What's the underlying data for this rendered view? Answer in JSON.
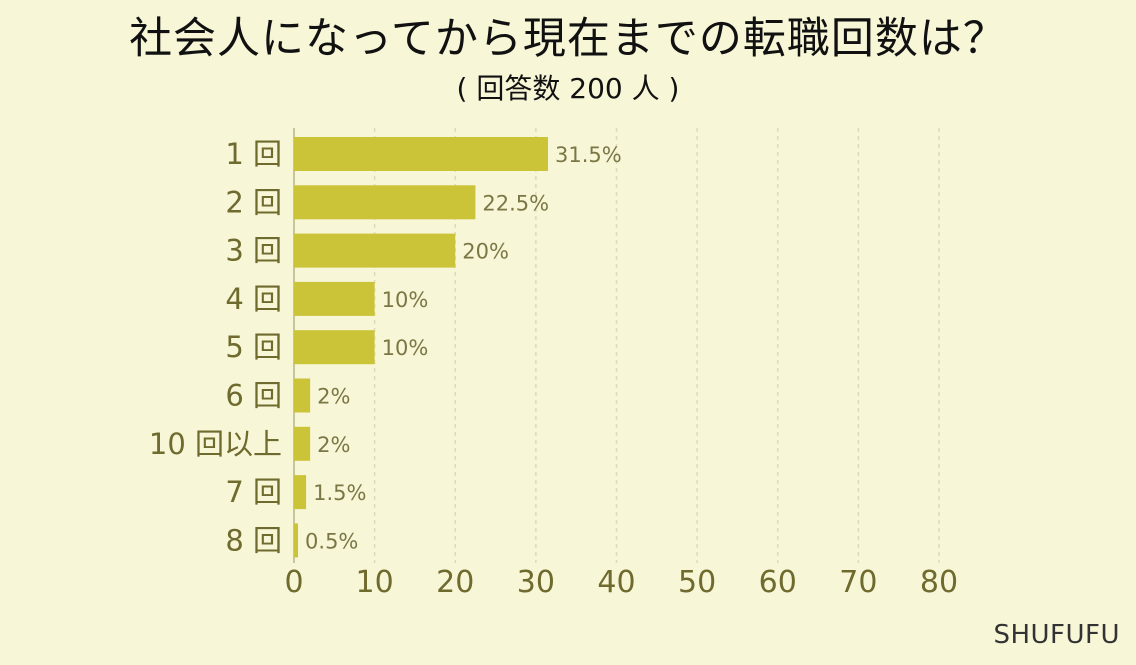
{
  "chart_data": {
    "type": "bar",
    "orientation": "horizontal",
    "title": "社会人になってから現在までの転職回数は？",
    "subtitle": "( 回答数 200 人 )",
    "categories": [
      "1 回",
      "2 回",
      "3 回",
      "4 回",
      "5 回",
      "6 回",
      "10 回以上",
      "7 回",
      "8 回"
    ],
    "values": [
      31.5,
      22.5,
      20,
      10,
      10,
      2,
      2,
      1.5,
      0.5
    ],
    "value_labels": [
      "31.5%",
      "22.5%",
      "20%",
      "10%",
      "10%",
      "2%",
      "2%",
      "1.5%",
      "0.5%"
    ],
    "xlabel": "",
    "ylabel": "",
    "xlim": [
      0,
      80
    ],
    "xticks": [
      0,
      10,
      20,
      30,
      40,
      50,
      60,
      70,
      80
    ],
    "grid": "vertical dashed",
    "legend": "none"
  },
  "brand": "SHUFUFU",
  "colors": {
    "background": "#f7f6d7",
    "bar": "#cbc338",
    "tick_text": "#6f6a2e",
    "value_text": "#7b7745",
    "grid": "#dddbb9",
    "axis": "#b8b48a"
  }
}
